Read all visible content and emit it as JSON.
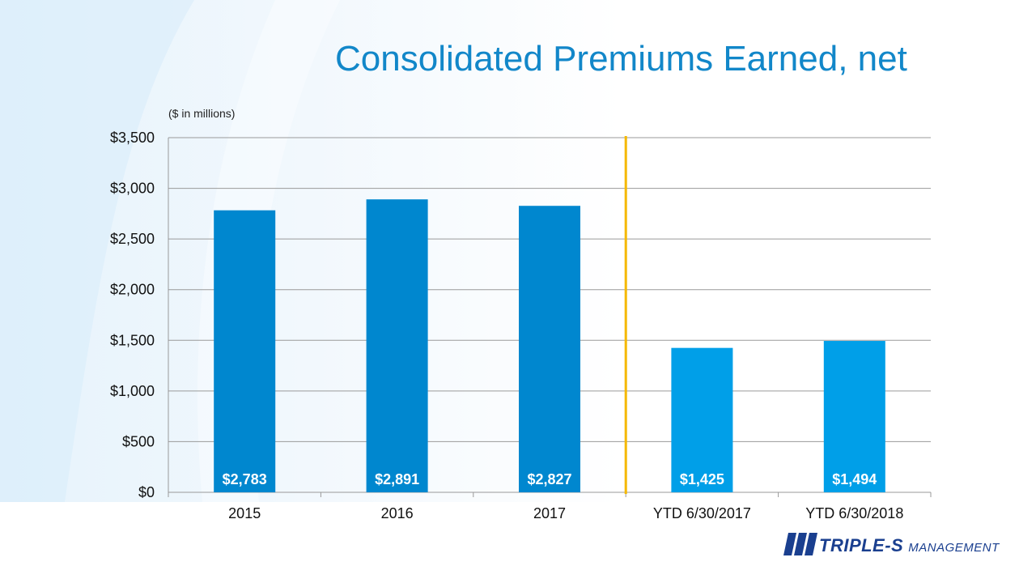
{
  "slide": {
    "title": "Consolidated Premiums Earned, net",
    "units_note": "($ in millions)"
  },
  "logo": {
    "brand": "TRIPLE-S",
    "subtitle": "MANAGEMENT",
    "icon": "sss-stripes-icon",
    "color": "#1a3f8f"
  },
  "chart_data": {
    "type": "bar",
    "title": "Consolidated Premiums Earned, net",
    "categories": [
      "2015",
      "2016",
      "2017",
      "YTD 6/30/2017",
      "YTD 6/30/2018"
    ],
    "values": [
      2783,
      2891,
      2827,
      1425,
      1494
    ],
    "data_labels": [
      "$2,783",
      "$2,891",
      "$2,827",
      "$1,425",
      "$1,494"
    ],
    "bar_colors": [
      "#0087cf",
      "#0087cf",
      "#0087cf",
      "#009fe8",
      "#009fe8"
    ],
    "ylim": [
      0,
      3500
    ],
    "yticks": [
      0,
      500,
      1000,
      1500,
      2000,
      2500,
      3000,
      3500
    ],
    "ytick_labels": [
      "$0",
      "$500",
      "$1,000",
      "$1,500",
      "$2,000",
      "$2,500",
      "$3,000",
      "$3,500"
    ],
    "grid": true,
    "separator_after_category": 2,
    "separator_color": "#f5b800",
    "xlabel": "",
    "ylabel": ""
  }
}
